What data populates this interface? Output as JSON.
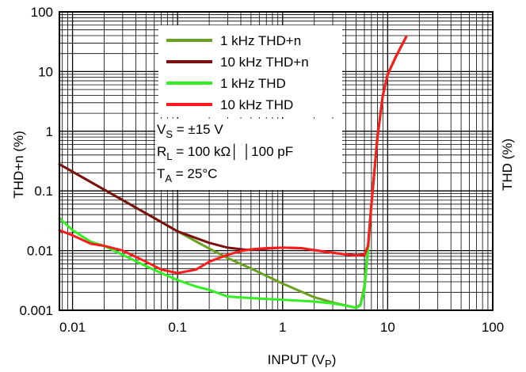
{
  "chart_data": {
    "type": "line",
    "xscale": "log",
    "yscale": "log",
    "xlim": [
      0.0075,
      100
    ],
    "ylim": [
      0.001,
      100
    ],
    "xlabel_main": "INPUT (V",
    "xlabel_sub": "P",
    "xlabel_end": ")",
    "ylabel_left": "THD+n (%)",
    "ylabel_right": "THD (%)",
    "x_tick_labels": [
      {
        "value": 0.01,
        "label": "0.01"
      },
      {
        "value": 0.1,
        "label": "0.1"
      },
      {
        "value": 1,
        "label": "1"
      },
      {
        "value": 10,
        "label": "10"
      },
      {
        "value": 100,
        "label": "100"
      }
    ],
    "y_tick_labels": [
      {
        "value": 0.001,
        "label": "0.001"
      },
      {
        "value": 0.01,
        "label": "0.01"
      },
      {
        "value": 0.1,
        "label": "0.1"
      },
      {
        "value": 1,
        "label": "1"
      },
      {
        "value": 10,
        "label": "10"
      },
      {
        "value": 100,
        "label": "100"
      }
    ],
    "grid": true,
    "legend_position": "top-center",
    "conditions": [
      {
        "main": "V",
        "sub": "S",
        "rest": " = ±15 V"
      },
      {
        "main": "R",
        "sub": "L",
        "rest": " = 100 kΩ│ │100 pF"
      },
      {
        "main": "T",
        "sub": "A",
        "rest": " = 25°C"
      }
    ],
    "series": [
      {
        "name": "1 kHz THD+n",
        "color": "#6aa121",
        "x": [
          0.0075,
          0.01,
          0.02,
          0.05,
          0.1,
          0.2,
          0.3,
          0.5,
          1,
          2,
          3,
          4,
          5,
          5.5,
          6,
          6.5,
          7,
          8,
          9,
          10,
          12,
          15
        ],
        "y": [
          0.28,
          0.21,
          0.105,
          0.042,
          0.021,
          0.0108,
          0.0075,
          0.005,
          0.0028,
          0.00165,
          0.00135,
          0.0012,
          0.0011,
          0.00125,
          0.0025,
          0.012,
          0.06,
          0.8,
          4,
          9,
          18,
          38
        ]
      },
      {
        "name": "10 kHz THD+n",
        "color": "#7a1010",
        "x": [
          0.0075,
          0.01,
          0.02,
          0.05,
          0.1,
          0.2,
          0.3,
          0.45,
          0.6,
          0.8,
          1,
          1.5,
          2,
          3,
          4,
          5,
          6,
          6.5,
          7,
          8,
          9,
          10,
          12,
          15
        ],
        "y": [
          0.28,
          0.21,
          0.105,
          0.042,
          0.021,
          0.0135,
          0.0112,
          0.0103,
          0.0105,
          0.011,
          0.0112,
          0.011,
          0.0102,
          0.0092,
          0.0086,
          0.0083,
          0.0085,
          0.012,
          0.06,
          0.8,
          4,
          9,
          18,
          38
        ]
      },
      {
        "name": "1 kHz THD",
        "color": "#33ee22",
        "x": [
          0.0075,
          0.01,
          0.015,
          0.02,
          0.03,
          0.05,
          0.07,
          0.1,
          0.15,
          0.2,
          0.3,
          0.5,
          1,
          2,
          3,
          4,
          5,
          5.5,
          6,
          6.5,
          7,
          8,
          9,
          10,
          12,
          15
        ],
        "y": [
          0.035,
          0.022,
          0.014,
          0.012,
          0.0085,
          0.0055,
          0.0042,
          0.0032,
          0.0025,
          0.0022,
          0.0017,
          0.0016,
          0.0015,
          0.0014,
          0.0013,
          0.0012,
          0.0011,
          0.0012,
          0.0022,
          0.01,
          0.06,
          0.8,
          4,
          9,
          18,
          38
        ]
      },
      {
        "name": "10 kHz THD",
        "color": "#ff1c1c",
        "x": [
          0.0075,
          0.01,
          0.015,
          0.02,
          0.03,
          0.05,
          0.07,
          0.1,
          0.15,
          0.2,
          0.3,
          0.4,
          0.5,
          0.7,
          1,
          1.5,
          2,
          3,
          4,
          5,
          6,
          6.5,
          7,
          8,
          9,
          10,
          12,
          15
        ],
        "y": [
          0.022,
          0.018,
          0.013,
          0.012,
          0.01,
          0.0065,
          0.0048,
          0.0042,
          0.0048,
          0.0065,
          0.0085,
          0.0098,
          0.0105,
          0.011,
          0.0112,
          0.011,
          0.0102,
          0.0092,
          0.0086,
          0.0083,
          0.0085,
          0.012,
          0.06,
          0.8,
          4,
          9,
          18,
          38
        ]
      }
    ]
  }
}
